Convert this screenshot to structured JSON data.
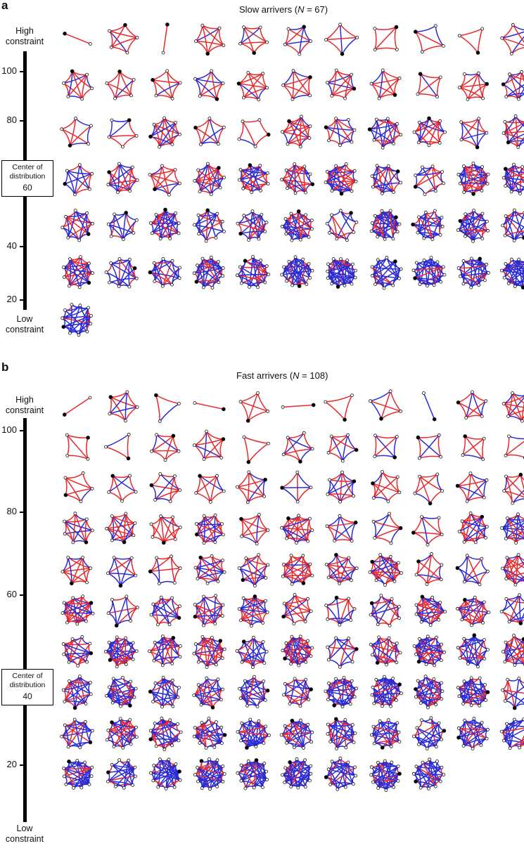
{
  "colors": {
    "red": "#e8282d",
    "blue": "#2a2ad6",
    "node_fill": "#ffffff",
    "node_stroke": "#111111",
    "ego": "#000000"
  },
  "panel_a": {
    "letter": "a",
    "title_prefix": "Slow arrivers (",
    "title_var": "N",
    "title_suffix": " = 67)",
    "top_label": "High\nconstraint",
    "bottom_label": "Low\nconstraint",
    "center_label_1": "Center of",
    "center_label_2": "distribution",
    "center_value": "60",
    "ticks": [
      "100",
      "80",
      "40",
      "20"
    ],
    "rows": [
      11,
      11,
      11,
      11,
      11,
      11,
      1
    ],
    "networks_total": 67
  },
  "panel_b": {
    "letter": "b",
    "title_prefix": "Fast arrivers (",
    "title_var": "N",
    "title_suffix": " = 108)",
    "top_label": "High\nconstraint",
    "bottom_label": "Low\nconstraint",
    "center_label_1": "Center of",
    "center_label_2": "distribution",
    "center_value": "40",
    "ticks": [
      "100",
      "80",
      "60",
      "20"
    ],
    "rows": [
      11,
      11,
      11,
      11,
      11,
      11,
      11,
      11,
      11,
      9
    ],
    "networks_total": 108
  }
}
